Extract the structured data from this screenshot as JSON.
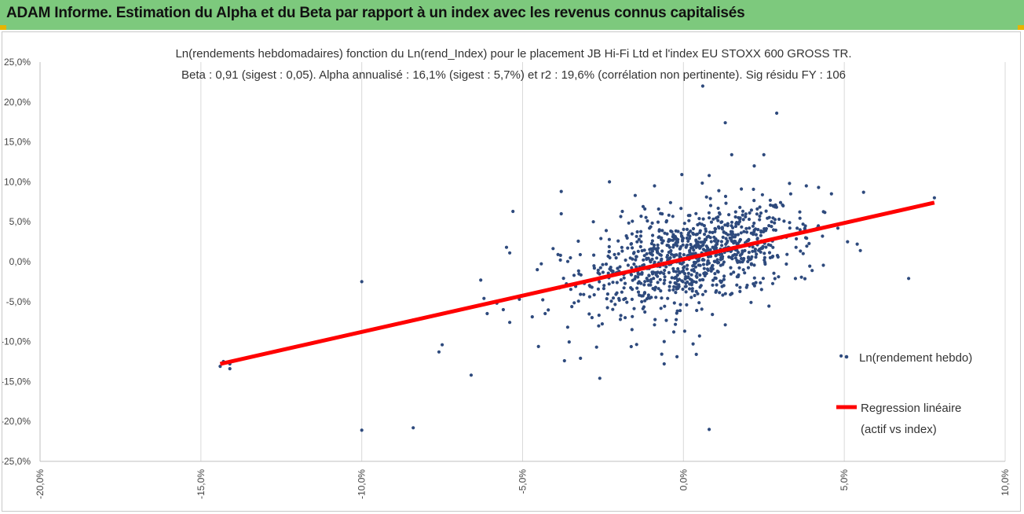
{
  "banner": {
    "title": "ADAM Informe. Estimation du Alpha et du Beta par rapport à un index avec les revenus connus capitalisés",
    "background_color": "#7dc97d",
    "accent_color": "#e8b400"
  },
  "chart_data": {
    "type": "scatter",
    "title_line1": "Ln(rendements hebdomadaires) fonction du Ln(rend_Index) pour le placement JB Hi-Fi Ltd  et l'index EU STOXX 600 GROSS TR.",
    "title_line2": "Beta : 0,91 (sigest : 0,05). Alpha annualisé : 16,1% (sigest : 5,7%) et r2 : 19,6% (corrélation non pertinente). Sig résidu FY : 106",
    "xlim": [
      -0.2,
      0.1
    ],
    "ylim": [
      -0.25,
      0.25
    ],
    "x_ticks": [
      -0.2,
      -0.15,
      -0.1,
      -0.05,
      0.0,
      0.05,
      0.1
    ],
    "y_ticks": [
      -0.25,
      -0.2,
      -0.15,
      -0.1,
      -0.05,
      0.0,
      0.05,
      0.1,
      0.15,
      0.2,
      0.25
    ],
    "x_tick_labels": [
      "-20,0%",
      "-15,0%",
      "-10,0%",
      "-5,0%",
      "0,0%",
      "5,0%",
      "10,0%"
    ],
    "y_tick_labels": [
      "-25,0%",
      "-20,0%",
      "-15,0%",
      "-10,0%",
      "-5,0%",
      "0,0%",
      "5,0%",
      "10,0%",
      "15,0%",
      "20,0%",
      "25,0%"
    ],
    "grid": "vertical",
    "legend_position": "right",
    "series": [
      {
        "name": "Ln(rendement hebdo)",
        "kind": "scatter",
        "color": "#2e4a7d",
        "points": [
          [
            -0.144,
            -0.131
          ],
          [
            -0.141,
            -0.128
          ],
          [
            -0.143,
            -0.125
          ],
          [
            -0.141,
            -0.134
          ],
          [
            -0.1,
            -0.025
          ],
          [
            -0.1,
            -0.211
          ],
          [
            -0.084,
            -0.208
          ],
          [
            -0.084,
            -0.073
          ],
          [
            -0.076,
            -0.113
          ],
          [
            -0.075,
            -0.104
          ],
          [
            -0.066,
            -0.142
          ],
          [
            -0.063,
            -0.023
          ],
          [
            -0.061,
            -0.065
          ],
          [
            -0.062,
            -0.046
          ],
          [
            -0.058,
            -0.052
          ],
          [
            -0.053,
            0.063
          ],
          [
            -0.055,
            0.018
          ],
          [
            -0.054,
            0.011
          ],
          [
            -0.056,
            -0.06
          ],
          [
            -0.054,
            -0.076
          ],
          [
            -0.051,
            -0.047
          ],
          [
            -0.047,
            -0.069
          ],
          [
            -0.043,
            -0.065
          ],
          [
            -0.039,
            0.009
          ],
          [
            -0.038,
            0.088
          ],
          [
            -0.038,
            0.06
          ],
          [
            -0.037,
            -0.124
          ],
          [
            -0.036,
            -0.082
          ],
          [
            -0.032,
            -0.121
          ],
          [
            -0.028,
            0.05
          ],
          [
            -0.027,
            -0.107
          ],
          [
            -0.026,
            -0.146
          ],
          [
            -0.023,
            0.1
          ],
          [
            -0.018,
            0.002
          ],
          [
            -0.016,
            -0.085
          ],
          [
            -0.015,
            0.083
          ],
          [
            -0.009,
            0.095
          ],
          [
            -0.006,
            -0.1
          ],
          [
            -0.004,
            0.074
          ],
          [
            -0.002,
            -0.119
          ],
          [
            0.008,
            0.108
          ],
          [
            -0.006,
            -0.128
          ],
          [
            0.001,
            -0.054
          ],
          [
            0.006,
            0.22
          ],
          [
            0.013,
            0.174
          ],
          [
            0.029,
            0.186
          ],
          [
            0.015,
            0.134
          ],
          [
            0.022,
            0.12
          ],
          [
            0.025,
            0.134
          ],
          [
            0.008,
            -0.21
          ],
          [
            0.003,
            -0.103
          ],
          [
            0.004,
            -0.116
          ],
          [
            0.005,
            -0.093
          ],
          [
            0.038,
            0.03
          ],
          [
            0.04,
            -0.011
          ],
          [
            0.042,
            0.093
          ],
          [
            0.046,
            0.085
          ],
          [
            0.048,
            0.042
          ],
          [
            0.049,
            -0.118
          ],
          [
            0.051,
            0.025
          ],
          [
            0.054,
            0.022
          ],
          [
            0.055,
            0.014
          ],
          [
            0.056,
            0.087
          ],
          [
            0.07,
            -0.021
          ],
          [
            0.078,
            0.08
          ],
          [
            0.033,
            0.049
          ],
          [
            0.031,
            0.07
          ],
          [
            0.027,
            0.077
          ],
          [
            0.018,
            0.091
          ],
          [
            0.011,
            0.089
          ],
          [
            -0.012,
            0.066
          ],
          [
            -0.019,
            0.063
          ],
          [
            -0.024,
            0.039
          ],
          [
            -0.029,
            -0.031
          ],
          [
            -0.031,
            -0.041
          ],
          [
            -0.034,
            -0.017
          ],
          [
            -0.012,
            -0.063
          ],
          [
            -0.009,
            -0.079
          ],
          [
            -0.003,
            -0.088
          ],
          [
            0.015,
            -0.04
          ],
          [
            0.021,
            -0.051
          ],
          [
            0.009,
            -0.066
          ],
          [
            0.013,
            -0.079
          ],
          [
            -0.004,
            0.027
          ],
          [
            0.002,
            0.032
          ],
          [
            0.01,
            0.041
          ],
          [
            0.017,
            0.034
          ],
          [
            0.024,
            0.012
          ],
          [
            0.004,
            -0.018
          ],
          [
            -0.001,
            -0.002
          ],
          [
            0.006,
            0.009
          ],
          [
            0.014,
            0.014
          ],
          [
            -0.008,
            -0.026
          ],
          [
            -0.014,
            -0.038
          ],
          [
            -0.02,
            -0.012
          ],
          [
            0.019,
            -0.014
          ],
          [
            0.027,
            0.005
          ],
          [
            0.032,
            -0.003
          ],
          [
            0.035,
            0.018
          ],
          [
            0.002,
            0.058
          ]
        ]
      },
      {
        "name": "Regression linéaire",
        "name_line2": "(actif vs index)",
        "kind": "line",
        "color": "#ff0000",
        "points": [
          [
            -0.144,
            -0.128
          ],
          [
            0.078,
            0.074
          ]
        ]
      }
    ]
  }
}
